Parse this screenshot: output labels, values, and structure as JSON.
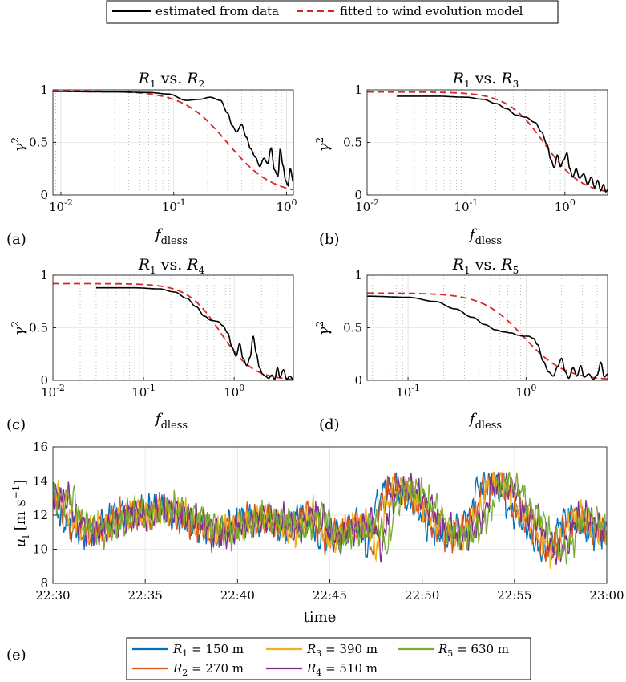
{
  "top_legend": {
    "entries": [
      {
        "label": "estimated from data",
        "color": "#000000",
        "style": "solid"
      },
      {
        "label": "fitted to wind evolution model",
        "color": "#d62728",
        "style": "dashed"
      }
    ]
  },
  "bottom_legend": {
    "entries": [
      {
        "sym": "R",
        "sub": "1",
        "rest": " = 150 m",
        "color": "#0072bd"
      },
      {
        "sym": "R",
        "sub": "3",
        "rest": " = 390 m",
        "color": "#edb120"
      },
      {
        "sym": "R",
        "sub": "5",
        "rest": " = 630 m",
        "color": "#77ac30"
      },
      {
        "sym": "R",
        "sub": "2",
        "rest": " = 270 m",
        "color": "#d95319"
      },
      {
        "sym": "R",
        "sub": "4",
        "rest": " = 510 m",
        "color": "#7e2f8e"
      }
    ]
  },
  "chart_data": [
    {
      "type": "line",
      "xscale": "log",
      "panel_label": "(a)",
      "title": {
        "a": "R",
        "a_sub": "1",
        "mid": " vs. ",
        "b": "R",
        "b_sub": "2"
      },
      "xlabel": {
        "main": "f",
        "sub": "dless"
      },
      "ylabel": {
        "main": "γ",
        "sup": "2"
      },
      "xlim": [
        0.0085,
        1.15
      ],
      "ylim": [
        0,
        1
      ],
      "xticks": [
        0.01,
        0.1,
        1
      ],
      "xticklabels": [
        {
          "b": "10",
          "e": "-2"
        },
        {
          "b": "10",
          "e": "-1"
        },
        {
          "b": "10",
          "e": "0"
        }
      ],
      "yticks": [
        0,
        0.5,
        1
      ],
      "yticklabels": [
        "0",
        "0.5",
        "1"
      ],
      "fitted": {
        "coherence_at_zero": 0.99,
        "f_half": 0.3,
        "power": 1.1
      },
      "estimated_nodes": [
        [
          0.0085,
          0.985
        ],
        [
          0.03,
          0.98
        ],
        [
          0.06,
          0.975
        ],
        [
          0.09,
          0.96
        ],
        [
          0.13,
          0.9
        ],
        [
          0.17,
          0.91
        ],
        [
          0.21,
          0.93
        ],
        [
          0.26,
          0.9
        ],
        [
          0.3,
          0.78
        ],
        [
          0.33,
          0.66
        ],
        [
          0.36,
          0.6
        ],
        [
          0.4,
          0.67
        ],
        [
          0.44,
          0.55
        ],
        [
          0.48,
          0.44
        ],
        [
          0.53,
          0.36
        ],
        [
          0.58,
          0.27
        ],
        [
          0.63,
          0.35
        ],
        [
          0.68,
          0.3
        ],
        [
          0.73,
          0.45
        ],
        [
          0.78,
          0.24
        ],
        [
          0.84,
          0.18
        ],
        [
          0.88,
          0.44
        ],
        [
          0.93,
          0.28
        ],
        [
          0.98,
          0.14
        ],
        [
          1.03,
          0.09
        ],
        [
          1.08,
          0.25
        ],
        [
          1.15,
          0.12
        ]
      ]
    },
    {
      "type": "line",
      "xscale": "log",
      "panel_label": "(b)",
      "title": {
        "a": "R",
        "a_sub": "1",
        "mid": " vs. ",
        "b": "R",
        "b_sub": "3"
      },
      "xlabel": {
        "main": "f",
        "sub": "dless"
      },
      "ylabel": {
        "main": "γ",
        "sup": "2"
      },
      "xlim": [
        0.01,
        2.7
      ],
      "ylim": [
        0,
        1
      ],
      "xticks": [
        0.01,
        0.1,
        1
      ],
      "xticklabels": [
        {
          "b": "10",
          "e": "-2"
        },
        {
          "b": "10",
          "e": "-1"
        },
        {
          "b": "10",
          "e": "0"
        }
      ],
      "yticks": [
        0,
        0.5,
        1
      ],
      "yticklabels": [
        "0",
        "0.5",
        "1"
      ],
      "fitted": {
        "coherence_at_zero": 0.98,
        "f_half": 0.62,
        "power": 1.15
      },
      "estimated_nodes": [
        [
          0.02,
          0.94
        ],
        [
          0.05,
          0.94
        ],
        [
          0.1,
          0.93
        ],
        [
          0.15,
          0.91
        ],
        [
          0.2,
          0.87
        ],
        [
          0.26,
          0.82
        ],
        [
          0.32,
          0.76
        ],
        [
          0.4,
          0.74
        ],
        [
          0.5,
          0.69
        ],
        [
          0.58,
          0.6
        ],
        [
          0.66,
          0.48
        ],
        [
          0.72,
          0.34
        ],
        [
          0.78,
          0.26
        ],
        [
          0.84,
          0.38
        ],
        [
          0.9,
          0.27
        ],
        [
          0.97,
          0.33
        ],
        [
          1.05,
          0.4
        ],
        [
          1.12,
          0.25
        ],
        [
          1.2,
          0.17
        ],
        [
          1.3,
          0.25
        ],
        [
          1.4,
          0.16
        ],
        [
          1.55,
          0.2
        ],
        [
          1.7,
          0.1
        ],
        [
          1.85,
          0.17
        ],
        [
          2.0,
          0.07
        ],
        [
          2.15,
          0.14
        ],
        [
          2.3,
          0.04
        ],
        [
          2.45,
          0.1
        ],
        [
          2.6,
          0.03
        ],
        [
          2.7,
          0.05
        ]
      ]
    },
    {
      "type": "line",
      "xscale": "log",
      "panel_label": "(c)",
      "title": {
        "a": "R",
        "a_sub": "1",
        "mid": " vs. ",
        "b": "R",
        "b_sub": "4"
      },
      "xlabel": {
        "main": "f",
        "sub": "dless"
      },
      "ylabel": {
        "main": "γ",
        "sup": "2"
      },
      "xlim": [
        0.01,
        4.5
      ],
      "ylim": [
        0,
        1
      ],
      "xticks": [
        0.01,
        0.1,
        1
      ],
      "xticklabels": [
        {
          "b": "10",
          "e": "-2"
        },
        {
          "b": "10",
          "e": "-1"
        },
        {
          "b": "10",
          "e": "0"
        }
      ],
      "yticks": [
        0,
        0.5,
        1
      ],
      "yticklabels": [
        "0",
        "0.5",
        "1"
      ],
      "fitted": {
        "coherence_at_zero": 0.92,
        "f_half": 0.7,
        "power": 1.2
      },
      "estimated_nodes": [
        [
          0.03,
          0.88
        ],
        [
          0.08,
          0.88
        ],
        [
          0.15,
          0.87
        ],
        [
          0.22,
          0.84
        ],
        [
          0.3,
          0.78
        ],
        [
          0.38,
          0.7
        ],
        [
          0.47,
          0.61
        ],
        [
          0.56,
          0.57
        ],
        [
          0.66,
          0.56
        ],
        [
          0.75,
          0.52
        ],
        [
          0.85,
          0.45
        ],
        [
          0.95,
          0.31
        ],
        [
          1.05,
          0.23
        ],
        [
          1.15,
          0.35
        ],
        [
          1.25,
          0.21
        ],
        [
          1.38,
          0.14
        ],
        [
          1.5,
          0.22
        ],
        [
          1.62,
          0.42
        ],
        [
          1.75,
          0.26
        ],
        [
          1.9,
          0.12
        ],
        [
          2.05,
          0.06
        ],
        [
          2.2,
          0.04
        ],
        [
          2.4,
          0.02
        ],
        [
          2.6,
          0.05
        ],
        [
          2.8,
          0.01
        ],
        [
          3.0,
          0.12
        ],
        [
          3.2,
          0.03
        ],
        [
          3.5,
          0.1
        ],
        [
          3.8,
          0.01
        ],
        [
          4.1,
          0.04
        ],
        [
          4.5,
          0.01
        ]
      ]
    },
    {
      "type": "line",
      "xscale": "log",
      "panel_label": "(d)",
      "title": {
        "a": "R",
        "a_sub": "1",
        "mid": " vs. ",
        "b": "R",
        "b_sub": "5"
      },
      "xlabel": {
        "main": "f",
        "sub": "dless"
      },
      "ylabel": {
        "main": "γ",
        "sup": "2"
      },
      "xlim": [
        0.045,
        4.9
      ],
      "ylim": [
        0,
        1
      ],
      "xticks": [
        0.1,
        1
      ],
      "xticklabels": [
        {
          "b": "10",
          "e": "-1"
        },
        {
          "b": "10",
          "e": "0"
        }
      ],
      "yticks": [
        0,
        0.5,
        1
      ],
      "yticklabels": [
        "0",
        "0.5",
        "1"
      ],
      "fitted": {
        "coherence_at_zero": 0.83,
        "f_half": 0.95,
        "power": 1.25
      },
      "estimated_nodes": [
        [
          0.045,
          0.8
        ],
        [
          0.1,
          0.79
        ],
        [
          0.17,
          0.75
        ],
        [
          0.25,
          0.68
        ],
        [
          0.35,
          0.6
        ],
        [
          0.45,
          0.53
        ],
        [
          0.55,
          0.48
        ],
        [
          0.65,
          0.46
        ],
        [
          0.75,
          0.45
        ],
        [
          0.85,
          0.43
        ],
        [
          0.95,
          0.42
        ],
        [
          1.05,
          0.42
        ],
        [
          1.15,
          0.4
        ],
        [
          1.25,
          0.34
        ],
        [
          1.4,
          0.18
        ],
        [
          1.55,
          0.08
        ],
        [
          1.7,
          0.04
        ],
        [
          1.85,
          0.13
        ],
        [
          2.0,
          0.21
        ],
        [
          2.15,
          0.08
        ],
        [
          2.3,
          0.02
        ],
        [
          2.5,
          0.12
        ],
        [
          2.7,
          0.04
        ],
        [
          2.9,
          0.14
        ],
        [
          3.1,
          0.03
        ],
        [
          3.4,
          0.06
        ],
        [
          3.7,
          0.01
        ],
        [
          4.0,
          0.05
        ],
        [
          4.3,
          0.17
        ],
        [
          4.6,
          0.03
        ],
        [
          4.9,
          0.06
        ]
      ]
    },
    {
      "type": "line",
      "panel_label": "(e)",
      "xlabel": "time",
      "ylabel": {
        "main": "u",
        "sub": "l",
        "unit": " [m s",
        "unit_sup": "−1",
        "close": "]"
      },
      "xlim": [
        0,
        30
      ],
      "ylim": [
        8,
        16
      ],
      "xticks": [
        0,
        5,
        10,
        15,
        20,
        25,
        30
      ],
      "xticklabels": [
        "22:30",
        "22:35",
        "22:40",
        "22:45",
        "22:50",
        "22:55",
        "23:00"
      ],
      "yticks": [
        8,
        10,
        12,
        14,
        16
      ],
      "yticklabels": [
        "8",
        "10",
        "12",
        "14",
        "16"
      ],
      "series_lag_minutes": [
        0,
        0.3,
        0.55,
        0.8,
        1.1
      ],
      "base_nodes": [
        [
          0,
          13.0
        ],
        [
          0.5,
          11.6
        ],
        [
          1.5,
          11.0
        ],
        [
          2.5,
          11.4
        ],
        [
          3.5,
          12.1
        ],
        [
          4.5,
          12.0
        ],
        [
          5.5,
          12.4
        ],
        [
          6.5,
          12.0
        ],
        [
          7.5,
          11.4
        ],
        [
          8.5,
          10.9
        ],
        [
          9.5,
          11.4
        ],
        [
          10.5,
          11.8
        ],
        [
          11.5,
          11.7
        ],
        [
          12.5,
          11.1
        ],
        [
          13.5,
          12.1
        ],
        [
          14.5,
          10.6
        ],
        [
          15.5,
          11.1
        ],
        [
          16.5,
          11.6
        ],
        [
          17.0,
          10.1
        ],
        [
          17.5,
          12.6
        ],
        [
          18.0,
          13.6
        ],
        [
          18.8,
          13.4
        ],
        [
          19.5,
          12.6
        ],
        [
          20.5,
          11.2
        ],
        [
          21.5,
          10.7
        ],
        [
          22.0,
          11.2
        ],
        [
          22.5,
          11.9
        ],
        [
          23.0,
          13.6
        ],
        [
          23.6,
          14.0
        ],
        [
          24.2,
          13.5
        ],
        [
          24.8,
          12.2
        ],
        [
          25.5,
          11.6
        ],
        [
          26.0,
          10.6
        ],
        [
          26.5,
          9.8
        ],
        [
          27.0,
          10.3
        ],
        [
          27.5,
          11.6
        ],
        [
          28.0,
          12.0
        ],
        [
          28.5,
          11.6
        ],
        [
          29.0,
          11.0
        ],
        [
          30.0,
          11.0
        ]
      ]
    }
  ]
}
